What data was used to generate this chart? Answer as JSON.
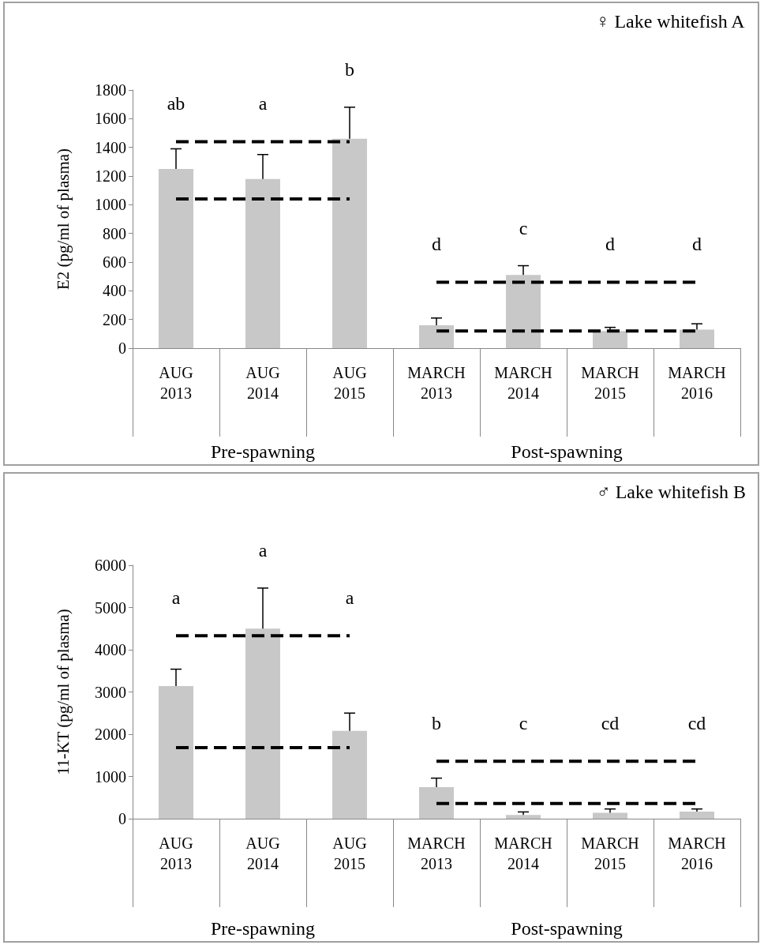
{
  "chart_data": [
    {
      "type": "bar",
      "title": "♀ Lake whitefish A",
      "ylabel": "E2 (pg/ml of plasma)",
      "categories": [
        "AUG 2013",
        "AUG 2014",
        "AUG 2015",
        "MARCH 2013",
        "MARCH 2014",
        "MARCH 2015",
        "MARCH 2016"
      ],
      "series": [
        {
          "color": "#c8c8c8",
          "values": [
            1250,
            1180,
            1460,
            160,
            510,
            120,
            130
          ],
          "errors": [
            [
              1250,
              1390
            ],
            [
              1180,
              1350
            ],
            [
              1460,
              1680
            ],
            [
              160,
              210
            ],
            [
              510,
              575
            ],
            [
              120,
              145
            ],
            [
              130,
              170
            ]
          ]
        },
        {
          "type": "line",
          "color": "#000000",
          "line_style": "dashed",
          "marker": "none",
          "values": [
            1440,
            1440,
            1440,
            null,
            null,
            null,
            null
          ]
        },
        {
          "type": "line",
          "color": "#000000",
          "line_style": "dashed",
          "marker": "none",
          "values": [
            1040,
            1040,
            1040,
            null,
            null,
            null,
            null
          ]
        },
        {
          "type": "line",
          "color": "#000000",
          "line_style": "dashed",
          "marker": "none",
          "values": [
            null,
            null,
            null,
            460,
            460,
            460,
            460
          ]
        },
        {
          "type": "line",
          "color": "#000000",
          "line_style": "dashed",
          "marker": "none",
          "values": [
            null,
            null,
            null,
            120,
            120,
            120,
            120
          ]
        }
      ],
      "ylim": [
        0,
        1800
      ],
      "yticks": [
        0,
        200,
        400,
        600,
        800,
        1000,
        1200,
        1400,
        1600,
        1800
      ],
      "grid": false,
      "annotations": [
        "ab",
        "a",
        "b",
        "d",
        "c",
        "d",
        "d",
        "Pre-spawning",
        "Post-spawning"
      ]
    },
    {
      "type": "bar",
      "title": "♂ Lake whitefish B",
      "ylabel": "11-KT (pg/ml of plasma)",
      "categories": [
        "AUG 2013",
        "AUG 2014",
        "AUG 2015",
        "MARCH 2013",
        "MARCH 2014",
        "MARCH 2015",
        "MARCH 2016"
      ],
      "series": [
        {
          "color": "#c8c8c8",
          "values": [
            3140,
            4500,
            2080,
            750,
            90,
            140,
            170
          ],
          "errors": [
            [
              3140,
              3540
            ],
            [
              4500,
              5460
            ],
            [
              2080,
              2500
            ],
            [
              750,
              960
            ],
            [
              90,
              160
            ],
            [
              140,
              230
            ],
            [
              170,
              230
            ]
          ]
        },
        {
          "type": "line",
          "color": "#000000",
          "line_style": "dashed",
          "marker": "none",
          "values": [
            4330,
            4330,
            4330,
            null,
            null,
            null,
            null
          ]
        },
        {
          "type": "line",
          "color": "#000000",
          "line_style": "dashed",
          "marker": "none",
          "values": [
            1680,
            1680,
            1680,
            null,
            null,
            null,
            null
          ]
        },
        {
          "type": "line",
          "color": "#000000",
          "line_style": "dashed",
          "marker": "none",
          "values": [
            null,
            null,
            null,
            1360,
            1360,
            1360,
            1360
          ]
        },
        {
          "type": "line",
          "color": "#000000",
          "line_style": "dashed",
          "marker": "none",
          "values": [
            null,
            null,
            null,
            360,
            360,
            360,
            360
          ]
        }
      ],
      "ylim": [
        0,
        6000
      ],
      "yticks": [
        0,
        1000,
        2000,
        3000,
        4000,
        5000,
        6000
      ],
      "grid": false,
      "annotations": [
        "a",
        "a",
        "a",
        "b",
        "c",
        "cd",
        "cd",
        "Pre-spawning",
        "Post-spawning"
      ]
    }
  ]
}
